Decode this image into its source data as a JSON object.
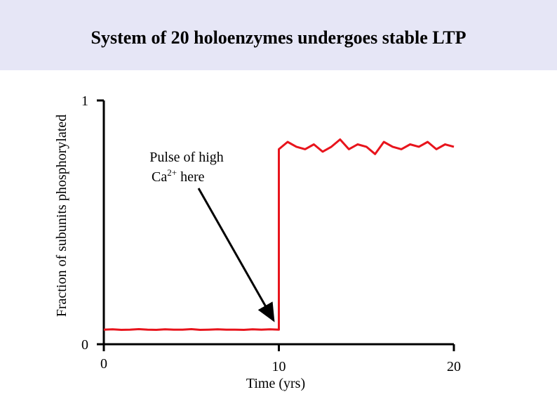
{
  "chart_data": {
    "type": "line",
    "title": "System of 20 holoenzymes undergoes stable LTP",
    "y_label": "Fraction of subunits phosphorylated",
    "x_label": "Time (yrs)",
    "annotation": {
      "text": "Pulse of high",
      "base": "Ca",
      "sup": "2+",
      "tail": " here"
    },
    "color": "#e8141c",
    "x": [
      0,
      0.5,
      1,
      1.5,
      2,
      2.5,
      3,
      3.5,
      4,
      4.5,
      5,
      5.5,
      6,
      6.5,
      7,
      7.5,
      8,
      8.5,
      9,
      9.5,
      10,
      10,
      10.5,
      11,
      11.5,
      12,
      12.5,
      13,
      13.5,
      14,
      14.5,
      15,
      15.5,
      16,
      16.5,
      17,
      17.5,
      18,
      18.5,
      19,
      19.5,
      20
    ],
    "values": [
      0.06,
      0.061,
      0.059,
      0.06,
      0.062,
      0.06,
      0.059,
      0.061,
      0.06,
      0.06,
      0.062,
      0.059,
      0.06,
      0.061,
      0.06,
      0.06,
      0.059,
      0.061,
      0.06,
      0.061,
      0.06,
      0.8,
      0.83,
      0.81,
      0.8,
      0.82,
      0.79,
      0.81,
      0.84,
      0.8,
      0.82,
      0.81,
      0.78,
      0.83,
      0.81,
      0.8,
      0.82,
      0.81,
      0.83,
      0.8,
      0.82,
      0.81
    ],
    "xlim": [
      0,
      20
    ],
    "xticks": [
      0,
      10,
      20
    ],
    "ylim": [
      0,
      1
    ],
    "yticks": [
      0,
      1
    ]
  }
}
